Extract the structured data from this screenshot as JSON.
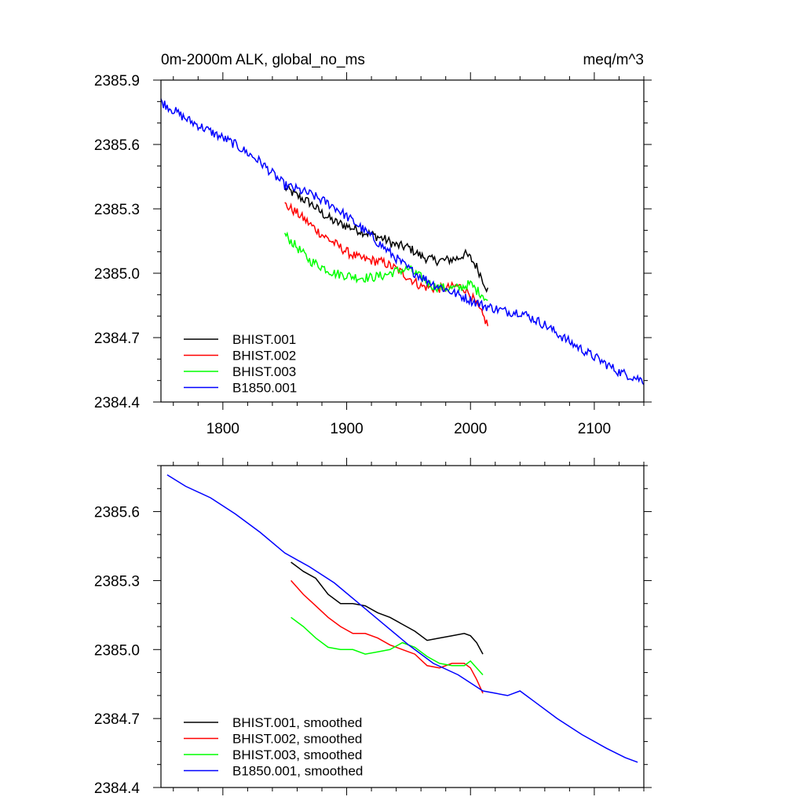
{
  "chart_data": [
    {
      "type": "line",
      "title_left": "0m-2000m ALK, global_no_ms",
      "title_right": "meq/m^3",
      "xlabel": "",
      "ylabel": "",
      "xlim": [
        1750,
        2140
      ],
      "ylim": [
        2384.4,
        2385.9
      ],
      "xticks": [
        1800,
        1900,
        2000,
        2100
      ],
      "xtick_labels": [
        "1800",
        "1900",
        "2000",
        "2100"
      ],
      "yticks": [
        2384.4,
        2384.7,
        2385.0,
        2385.3,
        2385.6,
        2385.9
      ],
      "ytick_labels": [
        "2384.4",
        "2384.7",
        "2385.0",
        "2385.3",
        "2385.6",
        "2385.9"
      ],
      "grid": false,
      "legend_position": "bottom-left",
      "noisy": true,
      "series": [
        {
          "name": "BHIST.001",
          "color": "#000000",
          "x": [
            1850,
            1860,
            1870,
            1880,
            1890,
            1900,
            1910,
            1920,
            1930,
            1940,
            1950,
            1960,
            1970,
            1980,
            1990,
            1995,
            2000,
            2005,
            2010,
            2014
          ],
          "y": [
            2385.4,
            2385.36,
            2385.33,
            2385.28,
            2385.24,
            2385.22,
            2385.2,
            2385.18,
            2385.16,
            2385.13,
            2385.12,
            2385.08,
            2385.06,
            2385.06,
            2385.07,
            2385.09,
            2385.07,
            2385.03,
            2384.97,
            2384.92
          ]
        },
        {
          "name": "BHIST.002",
          "color": "#ff0000",
          "x": [
            1850,
            1860,
            1870,
            1880,
            1890,
            1900,
            1910,
            1920,
            1930,
            1940,
            1950,
            1960,
            1970,
            1980,
            1990,
            1995,
            2000,
            2005,
            2010,
            2014
          ],
          "y": [
            2385.32,
            2385.28,
            2385.23,
            2385.18,
            2385.14,
            2385.1,
            2385.07,
            2385.06,
            2385.05,
            2385.02,
            2384.98,
            2384.94,
            2384.93,
            2384.93,
            2384.94,
            2384.93,
            2384.9,
            2384.85,
            2384.8,
            2384.76
          ]
        },
        {
          "name": "BHIST.003",
          "color": "#00ff00",
          "x": [
            1850,
            1860,
            1870,
            1880,
            1890,
            1900,
            1910,
            1920,
            1930,
            1940,
            1950,
            1960,
            1970,
            1980,
            1990,
            1995,
            2000,
            2005,
            2010,
            2014
          ],
          "y": [
            2385.18,
            2385.12,
            2385.06,
            2385.03,
            2385.0,
            2384.99,
            2384.98,
            2384.98,
            2384.99,
            2385.01,
            2385.02,
            2384.98,
            2384.94,
            2384.93,
            2384.93,
            2384.94,
            2384.95,
            2384.92,
            2384.9,
            2384.87
          ]
        },
        {
          "name": "B1850.001",
          "color": "#0000ff",
          "x": [
            1750,
            1770,
            1790,
            1810,
            1830,
            1850,
            1870,
            1890,
            1910,
            1930,
            1950,
            1970,
            1990,
            2010,
            2030,
            2040,
            2060,
            2080,
            2100,
            2120,
            2140
          ],
          "y": [
            2385.8,
            2385.72,
            2385.66,
            2385.6,
            2385.52,
            2385.41,
            2385.37,
            2385.31,
            2385.22,
            2385.12,
            2385.02,
            2384.95,
            2384.9,
            2384.85,
            2384.82,
            2384.82,
            2384.76,
            2384.68,
            2384.61,
            2384.54,
            2384.5
          ]
        }
      ]
    },
    {
      "type": "line",
      "title_left": "",
      "title_right": "",
      "xlabel": "",
      "ylabel": "",
      "xlim": [
        1750,
        2140
      ],
      "ylim": [
        2384.4,
        2385.8
      ],
      "xticks": [
        1800,
        1900,
        2000,
        2100
      ],
      "xtick_labels": [
        "",
        "",
        "",
        ""
      ],
      "yticks": [
        2384.4,
        2384.7,
        2385.0,
        2385.3,
        2385.6
      ],
      "ytick_labels": [
        "2384.4",
        "2384.7",
        "2385.0",
        "2385.3",
        "2385.6"
      ],
      "grid": false,
      "legend_position": "bottom-left",
      "noisy": false,
      "series": [
        {
          "name": "BHIST.001, smoothed",
          "color": "#000000",
          "x": [
            1855,
            1865,
            1875,
            1885,
            1895,
            1905,
            1915,
            1925,
            1935,
            1945,
            1955,
            1965,
            1975,
            1985,
            1995,
            2000,
            2005,
            2010
          ],
          "y": [
            2385.38,
            2385.34,
            2385.31,
            2385.24,
            2385.2,
            2385.2,
            2385.19,
            2385.16,
            2385.14,
            2385.11,
            2385.08,
            2385.04,
            2385.05,
            2385.06,
            2385.07,
            2385.06,
            2385.03,
            2384.98
          ]
        },
        {
          "name": "BHIST.002, smoothed",
          "color": "#ff0000",
          "x": [
            1855,
            1865,
            1875,
            1885,
            1895,
            1905,
            1915,
            1925,
            1935,
            1945,
            1955,
            1965,
            1975,
            1985,
            1995,
            2000,
            2005,
            2010
          ],
          "y": [
            2385.3,
            2385.24,
            2385.19,
            2385.14,
            2385.1,
            2385.07,
            2385.07,
            2385.05,
            2385.02,
            2385.0,
            2384.98,
            2384.93,
            2384.92,
            2384.94,
            2384.94,
            2384.92,
            2384.87,
            2384.81
          ]
        },
        {
          "name": "BHIST.003, smoothed",
          "color": "#00ff00",
          "x": [
            1855,
            1865,
            1875,
            1885,
            1895,
            1905,
            1915,
            1925,
            1935,
            1945,
            1955,
            1965,
            1975,
            1985,
            1995,
            2000,
            2005,
            2010
          ],
          "y": [
            2385.14,
            2385.1,
            2385.05,
            2385.01,
            2385.0,
            2385.0,
            2384.98,
            2384.99,
            2385.0,
            2385.03,
            2385.01,
            2384.97,
            2384.94,
            2384.93,
            2384.93,
            2384.95,
            2384.92,
            2384.89
          ]
        },
        {
          "name": "B1850.001, smoothed",
          "color": "#0000ff",
          "x": [
            1755,
            1770,
            1790,
            1810,
            1830,
            1850,
            1870,
            1890,
            1910,
            1930,
            1950,
            1970,
            1990,
            2010,
            2020,
            2030,
            2040,
            2050,
            2070,
            2090,
            2110,
            2125,
            2135
          ],
          "y": [
            2385.76,
            2385.71,
            2385.66,
            2385.59,
            2385.51,
            2385.42,
            2385.36,
            2385.29,
            2385.2,
            2385.11,
            2385.02,
            2384.94,
            2384.89,
            2384.82,
            2384.81,
            2384.8,
            2384.82,
            2384.78,
            2384.7,
            2384.63,
            2384.57,
            2384.53,
            2384.51
          ]
        }
      ]
    }
  ]
}
